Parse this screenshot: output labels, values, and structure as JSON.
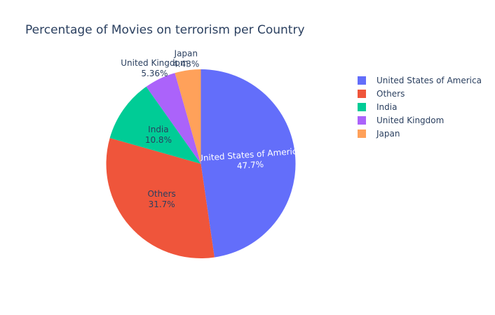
{
  "chart_data": {
    "type": "pie",
    "title": "Percentage of Movies on terrorism per Country",
    "categories": [
      "United States of America",
      "Others",
      "India",
      "United Kingdom",
      "Japan"
    ],
    "values": [
      47.7,
      31.7,
      10.8,
      5.36,
      4.43
    ],
    "labels": [
      "47.7%",
      "31.7%",
      "10.8%",
      "5.36%",
      "4.43%"
    ],
    "colors": [
      "#636efa",
      "#ef553b",
      "#00cc96",
      "#ab63fa",
      "#ffa15a"
    ],
    "direction": "clockwise",
    "legend_position": "right"
  }
}
